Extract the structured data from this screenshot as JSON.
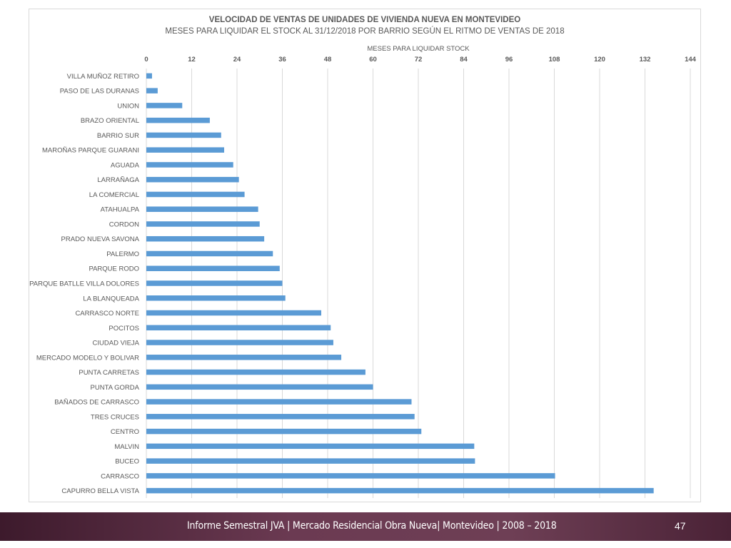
{
  "footer": {
    "text": "Informe Semestral JVA | Mercado Residencial Obra Nueva| Montevideo | 2008 – 2018",
    "page_number": "47"
  },
  "colors": {
    "bar": "#5b9bd5",
    "grid": "#d9d9d9",
    "axis_text": "#595959"
  },
  "chart_data": {
    "type": "bar",
    "orientation": "horizontal",
    "title": "VELOCIDAD DE VENTAS DE UNIDADES DE VIVIENDA NUEVA EN MONTEVIDEO",
    "subtitle": "MESES PARA LIQUIDAR EL STOCK AL 31/12/2018 POR BARRIO SEGÚN EL RITMO DE VENTAS DE 2018",
    "xlabel": "MESES PARA LIQUIDAR STOCK",
    "ylabel": "",
    "xlim": [
      0,
      144
    ],
    "xticks": [
      0,
      12,
      24,
      36,
      48,
      60,
      72,
      84,
      96,
      108,
      120,
      132,
      144
    ],
    "axis_position": "top",
    "grid": true,
    "legend": "none",
    "categories": [
      "VILLA MUÑOZ RETIRO",
      "PASO DE LAS DURANAS",
      "UNION",
      "BRAZO ORIENTAL",
      "BARRIO SUR",
      "MAROÑAS PARQUE GUARANI",
      "AGUADA",
      "LARRAÑAGA",
      "LA COMERCIAL",
      "ATAHUALPA",
      "CORDON",
      "PRADO NUEVA SAVONA",
      "PALERMO",
      "PARQUE RODO",
      "PARQUE BATLLE VILLA DOLORES",
      "LA BLANQUEADA",
      "CARRASCO NORTE",
      "POCITOS",
      "CIUDAD VIEJA",
      "MERCADO MODELO Y BOLIVAR",
      "PUNTA CARRETAS",
      "PUNTA GORDA",
      "BAÑADOS DE CARRASCO",
      "TRES CRUCES",
      "CENTRO",
      "MALVIN",
      "BUCEO",
      "CARRASCO",
      "CAPURRO BELLA VISTA"
    ],
    "values": [
      1.5,
      3,
      9.5,
      16.8,
      19.8,
      20.6,
      23,
      24.5,
      26,
      29.6,
      30,
      31.2,
      33.5,
      35.3,
      36,
      36.8,
      46.3,
      48.8,
      49.5,
      51.6,
      58,
      60,
      70.2,
      71,
      72.8,
      86.8,
      87,
      108.2,
      134.3
    ]
  }
}
